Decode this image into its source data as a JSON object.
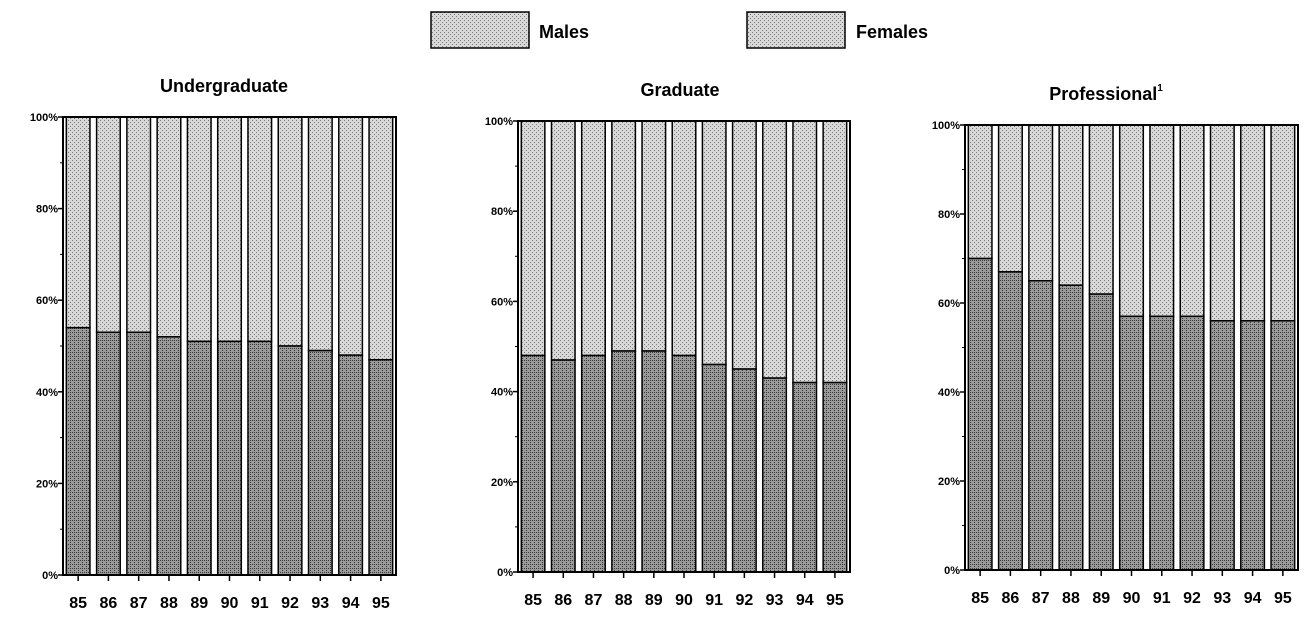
{
  "legend": {
    "males_label": "Males",
    "females_label": "Females"
  },
  "colors": {
    "males_fill": "#9a9a9a",
    "males_pattern": "#3a3a3a",
    "females_fill": "#d8d8d8",
    "females_pattern": "#7a7a7a",
    "axis": "#000000"
  },
  "chart_data": [
    {
      "type": "bar",
      "stacked": true,
      "percent": true,
      "title": "Undergraduate",
      "title_superscript": "",
      "categories": [
        "85",
        "86",
        "87",
        "88",
        "89",
        "90",
        "91",
        "92",
        "93",
        "94",
        "95"
      ],
      "ylim": [
        0,
        100
      ],
      "yticks": [
        "0%",
        "20%",
        "40%",
        "60%",
        "80%",
        "100%"
      ],
      "series": [
        {
          "name": "Males",
          "values": [
            54,
            53,
            53,
            52,
            51,
            51,
            51,
            50,
            49,
            48,
            47
          ]
        },
        {
          "name": "Females",
          "values": [
            46,
            47,
            47,
            48,
            49,
            49,
            49,
            50,
            51,
            52,
            53
          ]
        }
      ]
    },
    {
      "type": "bar",
      "stacked": true,
      "percent": true,
      "title": "Graduate",
      "title_superscript": "",
      "categories": [
        "85",
        "86",
        "87",
        "88",
        "89",
        "90",
        "91",
        "92",
        "93",
        "94",
        "95"
      ],
      "ylim": [
        0,
        100
      ],
      "yticks": [
        "0%",
        "20%",
        "40%",
        "60%",
        "80%",
        "100%"
      ],
      "series": [
        {
          "name": "Males",
          "values": [
            48,
            47,
            48,
            49,
            49,
            48,
            46,
            45,
            43,
            42,
            42
          ]
        },
        {
          "name": "Females",
          "values": [
            52,
            53,
            52,
            51,
            51,
            52,
            54,
            55,
            57,
            58,
            58
          ]
        }
      ]
    },
    {
      "type": "bar",
      "stacked": true,
      "percent": true,
      "title": "Professional",
      "title_superscript": "1",
      "categories": [
        "85",
        "86",
        "87",
        "88",
        "89",
        "90",
        "91",
        "92",
        "93",
        "94",
        "95"
      ],
      "ylim": [
        0,
        100
      ],
      "yticks": [
        "0%",
        "20%",
        "40%",
        "60%",
        "80%",
        "100%"
      ],
      "series": [
        {
          "name": "Males",
          "values": [
            70,
            67,
            65,
            64,
            62,
            57,
            57,
            57,
            56,
            56,
            56
          ]
        },
        {
          "name": "Females",
          "values": [
            30,
            33,
            35,
            36,
            38,
            43,
            43,
            43,
            44,
            44,
            44
          ]
        }
      ]
    }
  ]
}
